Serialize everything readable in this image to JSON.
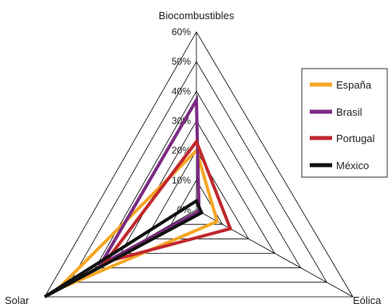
{
  "chart_data": {
    "type": "radar",
    "axes": [
      "Biocombustibles",
      "Eólica",
      "Solar"
    ],
    "scale": {
      "min": 0,
      "max": 60,
      "step": 10
    },
    "tick_labels": [
      "0%",
      "10%",
      "20%",
      "30%",
      "40%",
      "50%",
      "60%"
    ],
    "grid": true,
    "legend_position": "right",
    "series": [
      {
        "name": "España",
        "color": "#f5a623",
        "values": [
          20,
          8,
          55
        ]
      },
      {
        "name": "Brasil",
        "color": "#7b2a82",
        "values": [
          37,
          1,
          38
        ]
      },
      {
        "name": "Portugal",
        "color": "#c0282d",
        "values": [
          23,
          13,
          36
        ]
      },
      {
        "name": "México",
        "color": "#111111",
        "values": [
          3,
          2,
          60
        ]
      }
    ]
  }
}
